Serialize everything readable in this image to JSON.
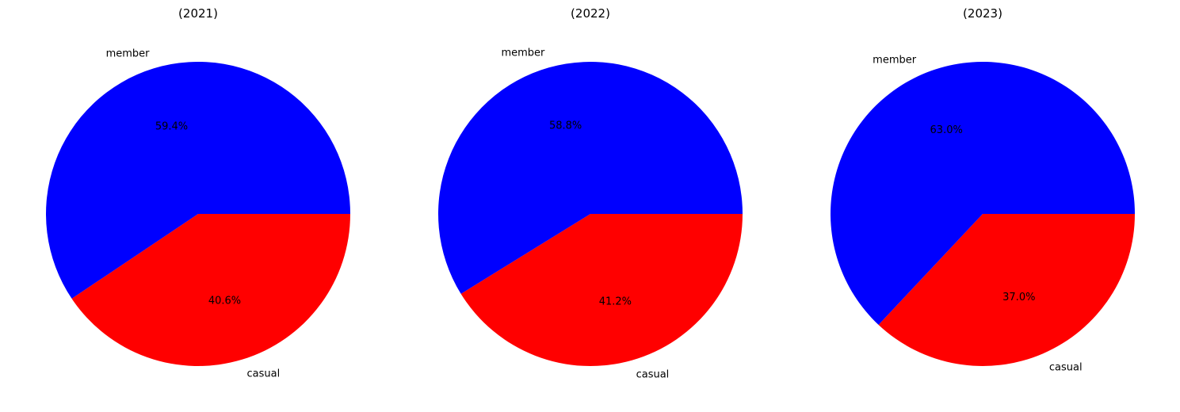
{
  "chart_data": [
    {
      "type": "pie",
      "title": "(2021)",
      "slices": [
        {
          "label": "member",
          "value": 59.4,
          "pct_label": "59.4%",
          "color": "#0000ff"
        },
        {
          "label": "casual",
          "value": 40.6,
          "pct_label": "40.6%",
          "color": "#ff0000"
        }
      ]
    },
    {
      "type": "pie",
      "title": "(2022)",
      "slices": [
        {
          "label": "member",
          "value": 58.8,
          "pct_label": "58.8%",
          "color": "#0000ff"
        },
        {
          "label": "casual",
          "value": 41.2,
          "pct_label": "41.2%",
          "color": "#ff0000"
        }
      ]
    },
    {
      "type": "pie",
      "title": "(2023)",
      "slices": [
        {
          "label": "member",
          "value": 63.0,
          "pct_label": "63.0%",
          "color": "#0000ff"
        },
        {
          "label": "casual",
          "value": 37.0,
          "pct_label": "37.0%",
          "color": "#ff0000"
        }
      ]
    }
  ]
}
